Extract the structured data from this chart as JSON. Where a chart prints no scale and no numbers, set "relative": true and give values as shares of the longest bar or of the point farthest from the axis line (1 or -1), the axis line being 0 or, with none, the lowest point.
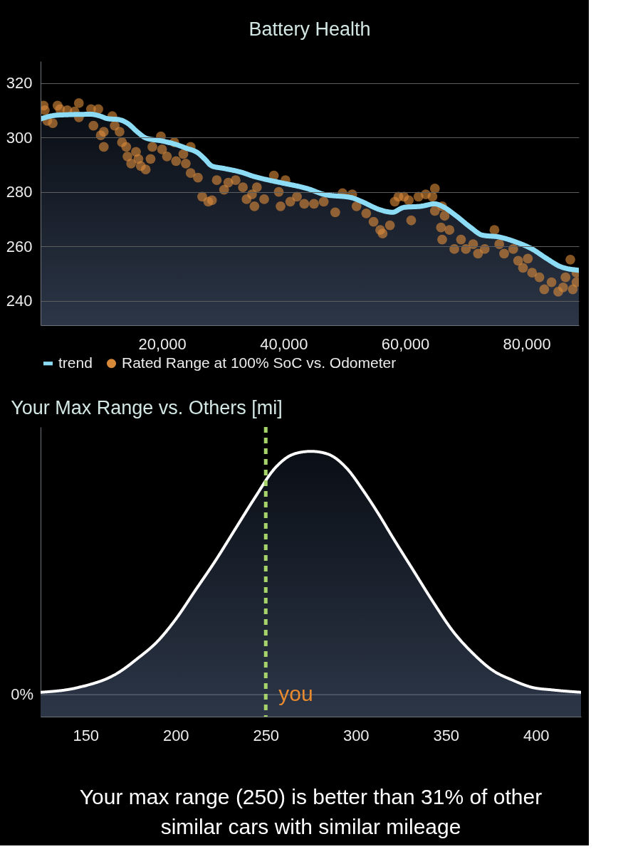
{
  "chart_data": [
    {
      "type": "area",
      "title": "Battery Health",
      "xlim": [
        0,
        88600
      ],
      "xticks": [
        {
          "value": 20000,
          "label": "20,000"
        },
        {
          "value": 40000,
          "label": "40,000"
        },
        {
          "value": 60000,
          "label": "60,000"
        },
        {
          "value": 80000,
          "label": "80,000"
        }
      ],
      "ylim": [
        231,
        328
      ],
      "yticks": [
        240,
        260,
        280,
        300,
        320
      ],
      "grid": "y",
      "legend": "bottom",
      "series": [
        {
          "name": "trend",
          "type": "area",
          "color": "#8ddcf6",
          "x": [
            0,
            2800,
            8300,
            9850,
            11000,
            13000,
            14300,
            16100,
            17300,
            20000,
            22300,
            23900,
            25900,
            27000,
            28200,
            30200,
            32900,
            35200,
            37600,
            39500,
            44200,
            46600,
            51300,
            52800,
            55900,
            57900,
            59800,
            62600,
            64900,
            66100,
            68400,
            70800,
            72700,
            75500,
            78200,
            80900,
            83300,
            85600,
            88600
          ],
          "values": [
            306.8,
            308.2,
            308.5,
            307.8,
            306.9,
            306.5,
            305.2,
            301.7,
            299.8,
            298.7,
            297.4,
            296.1,
            294.3,
            292.1,
            289.5,
            288.6,
            287.3,
            285.6,
            284.3,
            283.4,
            281,
            279.1,
            277.8,
            276.5,
            273.4,
            272.5,
            274.3,
            274.7,
            275.6,
            274.7,
            271.2,
            266.9,
            264.1,
            263.4,
            261.6,
            259,
            255.5,
            252.5,
            251.2
          ]
        },
        {
          "name": "Rated Range at 100% SoC vs. Odometer",
          "type": "scatter",
          "marker": "circle",
          "color": "#d9893a",
          "x": [
            500,
            700,
            1100,
            2000,
            2800,
            3200,
            4400,
            5600,
            6300,
            6300,
            8300,
            8700,
            9500,
            9900,
            10400,
            10400,
            11800,
            12200,
            13000,
            13400,
            14100,
            14300,
            14900,
            15700,
            16100,
            16500,
            17300,
            18100,
            18400,
            19800,
            20000,
            20800,
            22000,
            22300,
            23500,
            23900,
            24700,
            24700,
            25900,
            26600,
            27600,
            28200,
            29000,
            30200,
            30900,
            32100,
            33300,
            33900,
            34800,
            35200,
            35600,
            36800,
            38400,
            39200,
            39500,
            40300,
            41100,
            42200,
            43400,
            45000,
            46600,
            48500,
            49700,
            51300,
            52000,
            53600,
            54800,
            55900,
            56300,
            57500,
            58300,
            58900,
            59800,
            60600,
            61000,
            62200,
            63400,
            64500,
            64900,
            64900,
            65900,
            66100,
            66500,
            66100,
            67300,
            68100,
            69200,
            70000,
            71200,
            72000,
            73100,
            74700,
            75500,
            76300,
            77800,
            78600,
            79400,
            80200,
            80900,
            82100,
            82900,
            84100,
            85200,
            86000,
            86400,
            87200,
            87600,
            88200,
            88200
          ],
          "values": [
            311.7,
            310,
            306.1,
            305.2,
            311.7,
            310.4,
            310,
            309.5,
            312.6,
            307.4,
            310.4,
            304.3,
            310.4,
            300.8,
            296.5,
            302.1,
            307.8,
            304.3,
            302.1,
            298.2,
            296.5,
            293,
            290.4,
            294.7,
            292.1,
            289.5,
            288.2,
            292.1,
            296.5,
            300.4,
            295.6,
            293,
            298.2,
            291.3,
            293.9,
            290.4,
            296.5,
            286.9,
            285.2,
            278.2,
            276.4,
            276.9,
            284.3,
            280.8,
            283.4,
            284.3,
            281.7,
            277.3,
            279.1,
            274.7,
            281.7,
            277.3,
            286,
            280,
            274.7,
            284.3,
            276.4,
            278.2,
            275.6,
            275.6,
            276.4,
            272.5,
            279.5,
            279.1,
            274.7,
            272.1,
            269,
            266,
            264.7,
            267.7,
            276.4,
            278.2,
            278.2,
            276.9,
            269.5,
            278.2,
            279.1,
            278.2,
            281.2,
            273,
            266.9,
            274.7,
            271.2,
            262.5,
            266,
            259,
            262.5,
            259,
            260.8,
            257.3,
            259,
            266,
            260.8,
            257.3,
            259,
            254.7,
            252.1,
            255.5,
            250.3,
            248.6,
            244.2,
            246.8,
            243.3,
            244.9,
            248.6,
            255.1,
            244.2,
            246.8,
            250.3
          ]
        }
      ]
    },
    {
      "type": "area",
      "title": "Your Max Range vs. Others [mi]",
      "relative": true,
      "xlim": [
        125,
        425
      ],
      "xticks": [
        150,
        200,
        250,
        300,
        350,
        400
      ],
      "series": [
        {
          "color": "#ffffff",
          "x": [
            125,
            146,
            168,
            179,
            190,
            200,
            211,
            222,
            233,
            244,
            255,
            266,
            275,
            284,
            295,
            304,
            312,
            321,
            332,
            343,
            354,
            365,
            376,
            387,
            398,
            409,
            425
          ],
          "values": [
            0.01,
            0.03,
            0.09,
            0.15,
            0.22,
            0.31,
            0.43,
            0.55,
            0.68,
            0.81,
            0.93,
            0.99,
            1,
            0.99,
            0.93,
            0.84,
            0.75,
            0.64,
            0.51,
            0.38,
            0.26,
            0.17,
            0.1,
            0.06,
            0.03,
            0.02,
            0.01
          ]
        }
      ],
      "ref_lines": [
        {
          "axis": "y",
          "value": 0,
          "label": "0%",
          "color": "#5f6672"
        },
        {
          "axis": "x",
          "value": 250,
          "label": "you",
          "color": "#a6d46b",
          "line_style": "dashed"
        }
      ],
      "annotations": [
        "Your max range (250) is better than 31% of other similar cars with similar mileage"
      ]
    }
  ]
}
